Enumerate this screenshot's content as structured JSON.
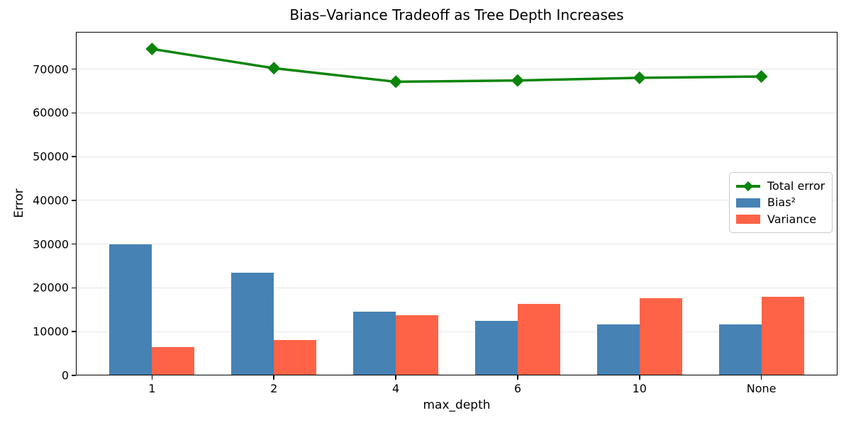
{
  "chart_data": {
    "type": "bar+line",
    "title": "Bias–Variance Tradeoff as Tree Depth Increases",
    "xlabel": "max_depth",
    "ylabel": "Error",
    "categories": [
      "1",
      "2",
      "4",
      "6",
      "10",
      "None"
    ],
    "series": [
      {
        "name": "Total error",
        "type": "line",
        "marker": "diamond",
        "color": "#0a850a",
        "values": [
          74600,
          70200,
          67100,
          67400,
          68000,
          68300
        ]
      },
      {
        "name": "Bias²",
        "type": "bar",
        "color": "#4682b4",
        "values": [
          29900,
          23500,
          14500,
          12500,
          11600,
          11700
        ]
      },
      {
        "name": "Variance",
        "type": "bar",
        "color": "#ff6347",
        "values": [
          6500,
          8100,
          13700,
          16300,
          17600,
          18000
        ]
      }
    ],
    "ylim": [
      0,
      78500
    ],
    "yticks": [
      0,
      10000,
      20000,
      30000,
      40000,
      50000,
      60000,
      70000
    ],
    "grid": "horizontal",
    "legend": {
      "position": "center-right",
      "entries": [
        "Total error",
        "Bias²",
        "Variance"
      ]
    }
  }
}
